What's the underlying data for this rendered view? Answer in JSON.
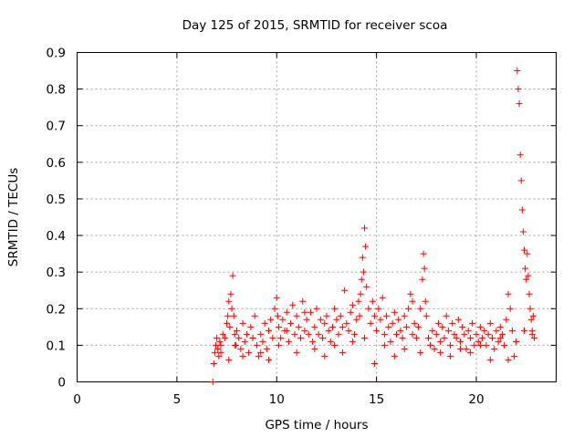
{
  "chart_data": {
    "type": "scatter",
    "title": "Day 125 of 2015, SRMTID for receiver scoa",
    "xlabel": "GPS time / hours",
    "ylabel": "SRMTID / TECUs",
    "xlim": [
      0,
      24
    ],
    "ylim": [
      0,
      0.9
    ],
    "x_ticks": [
      0,
      5,
      10,
      15,
      20
    ],
    "x_tick_labels": [
      "0",
      "5",
      "10",
      "15",
      "20"
    ],
    "y_ticks": [
      0,
      0.1,
      0.2,
      0.3,
      0.4,
      0.5,
      0.6,
      0.7,
      0.8,
      0.9
    ],
    "y_tick_labels": [
      "0",
      "0.1",
      "0.2",
      "0.3",
      "0.4",
      "0.5",
      "0.6",
      "0.7",
      "0.8",
      "0.9"
    ],
    "grid": true,
    "marker": "plus",
    "marker_color": "#ff0000",
    "series": [
      {
        "name": "SRMTID",
        "x": [
          6.8,
          6.85,
          6.9,
          6.95,
          7.0,
          7.05,
          7.1,
          7.15,
          7.2,
          7.3,
          7.4,
          7.5,
          7.55,
          7.6,
          7.65,
          7.7,
          7.75,
          7.8,
          7.85,
          7.9,
          7.95,
          8.0,
          8.1,
          8.2,
          8.3,
          8.4,
          8.5,
          8.6,
          8.7,
          8.8,
          8.9,
          9.0,
          9.1,
          9.2,
          9.3,
          9.4,
          9.5,
          9.6,
          9.7,
          9.8,
          9.9,
          10.0,
          10.05,
          10.1,
          10.2,
          10.3,
          10.4,
          10.5,
          10.6,
          10.7,
          10.8,
          10.9,
          11.0,
          11.1,
          11.2,
          11.3,
          11.4,
          11.5,
          11.6,
          11.7,
          11.8,
          11.9,
          12.0,
          12.1,
          12.2,
          12.3,
          12.4,
          12.5,
          12.6,
          12.7,
          12.8,
          12.9,
          13.0,
          13.1,
          13.2,
          13.3,
          13.4,
          13.5,
          13.6,
          13.7,
          13.8,
          13.9,
          14.0,
          14.1,
          14.15,
          14.2,
          14.25,
          14.3,
          14.35,
          14.4,
          14.45,
          14.5,
          14.6,
          14.7,
          14.8,
          14.9,
          15.0,
          15.1,
          15.2,
          15.3,
          15.4,
          15.5,
          15.6,
          15.7,
          15.8,
          15.9,
          16.0,
          16.1,
          16.2,
          16.3,
          16.4,
          16.5,
          16.6,
          16.7,
          16.8,
          16.9,
          17.0,
          17.1,
          17.2,
          17.3,
          17.35,
          17.4,
          17.45,
          17.5,
          17.6,
          17.7,
          17.8,
          17.9,
          18.0,
          18.1,
          18.2,
          18.3,
          18.4,
          18.5,
          18.6,
          18.7,
          18.8,
          18.9,
          19.0,
          19.1,
          19.2,
          19.3,
          19.4,
          19.5,
          19.6,
          19.7,
          19.8,
          19.9,
          20.0,
          20.1,
          20.2,
          20.3,
          20.4,
          20.5,
          20.6,
          20.7,
          20.8,
          20.9,
          21.0,
          21.1,
          21.2,
          21.3,
          21.4,
          21.5,
          21.6,
          21.7,
          21.8,
          21.9,
          22.0,
          22.05,
          22.1,
          22.15,
          22.2,
          22.25,
          22.3,
          22.35,
          22.4,
          22.45,
          22.5,
          22.55,
          22.6,
          22.65,
          22.7,
          22.75,
          22.8,
          22.85,
          22.9,
          7.2,
          7.6,
          7.9,
          8.3,
          8.8,
          9.2,
          9.6,
          10.1,
          10.5,
          11.0,
          11.4,
          11.9,
          12.4,
          12.9,
          13.3,
          13.8,
          14.4,
          14.9,
          15.4,
          15.9,
          16.4,
          16.8,
          17.2,
          17.7,
          18.2,
          18.7,
          19.2,
          19.7,
          20.2,
          20.7,
          21.2,
          21.6,
          22.0,
          22.4,
          22.8
        ],
        "y": [
          0.0,
          0.05,
          0.08,
          0.1,
          0.12,
          0.09,
          0.07,
          0.11,
          0.1,
          0.13,
          0.12,
          0.16,
          0.18,
          0.22,
          0.15,
          0.24,
          0.2,
          0.29,
          0.18,
          0.13,
          0.1,
          0.14,
          0.12,
          0.09,
          0.16,
          0.11,
          0.13,
          0.08,
          0.15,
          0.12,
          0.18,
          0.1,
          0.07,
          0.13,
          0.11,
          0.16,
          0.09,
          0.14,
          0.17,
          0.12,
          0.2,
          0.23,
          0.18,
          0.15,
          0.12,
          0.17,
          0.14,
          0.19,
          0.11,
          0.16,
          0.21,
          0.13,
          0.18,
          0.15,
          0.12,
          0.22,
          0.14,
          0.17,
          0.13,
          0.19,
          0.11,
          0.15,
          0.2,
          0.13,
          0.17,
          0.12,
          0.16,
          0.18,
          0.14,
          0.11,
          0.15,
          0.2,
          0.17,
          0.13,
          0.18,
          0.15,
          0.25,
          0.16,
          0.14,
          0.19,
          0.21,
          0.13,
          0.17,
          0.22,
          0.18,
          0.24,
          0.28,
          0.34,
          0.3,
          0.42,
          0.37,
          0.26,
          0.2,
          0.16,
          0.22,
          0.18,
          0.14,
          0.2,
          0.17,
          0.23,
          0.13,
          0.18,
          0.15,
          0.11,
          0.16,
          0.19,
          0.13,
          0.17,
          0.14,
          0.12,
          0.18,
          0.15,
          0.2,
          0.24,
          0.22,
          0.16,
          0.12,
          0.15,
          0.2,
          0.28,
          0.35,
          0.31,
          0.22,
          0.18,
          0.12,
          0.1,
          0.14,
          0.09,
          0.13,
          0.16,
          0.11,
          0.15,
          0.12,
          0.18,
          0.14,
          0.1,
          0.16,
          0.13,
          0.12,
          0.17,
          0.11,
          0.15,
          0.13,
          0.09,
          0.14,
          0.12,
          0.16,
          0.1,
          0.13,
          0.11,
          0.15,
          0.12,
          0.14,
          0.1,
          0.13,
          0.16,
          0.12,
          0.09,
          0.14,
          0.11,
          0.15,
          0.13,
          0.1,
          0.17,
          0.24,
          0.2,
          0.14,
          0.07,
          0.11,
          0.85,
          0.8,
          0.76,
          0.62,
          0.55,
          0.47,
          0.41,
          0.36,
          0.31,
          0.28,
          0.35,
          0.29,
          0.24,
          0.2,
          0.17,
          0.14,
          0.18,
          0.12,
          0.08,
          0.06,
          0.1,
          0.07,
          0.12,
          0.08,
          0.06,
          0.1,
          0.14,
          0.08,
          0.19,
          0.09,
          0.07,
          0.1,
          0.08,
          0.11,
          0.12,
          0.05,
          0.1,
          0.07,
          0.09,
          0.13,
          0.08,
          0.1,
          0.08,
          0.07,
          0.09,
          0.08,
          0.1,
          0.06,
          0.12,
          0.06,
          0.11,
          0.14,
          0.13
        ]
      }
    ]
  }
}
